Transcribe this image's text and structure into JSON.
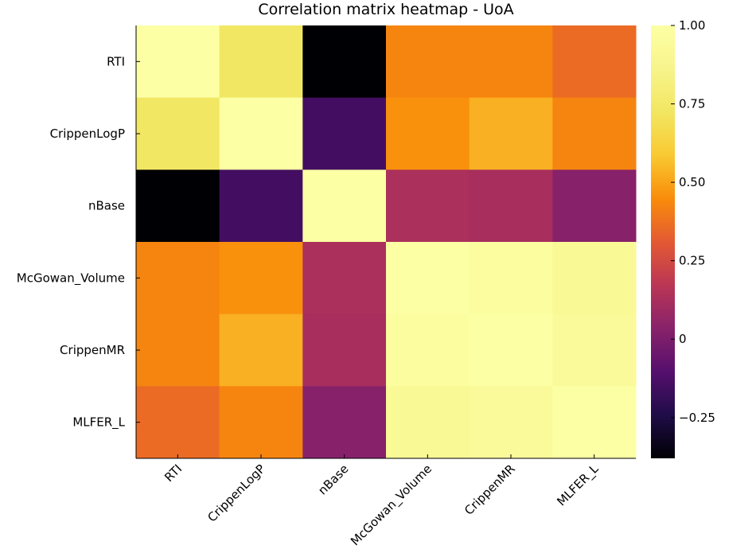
{
  "chart_data": {
    "type": "heatmap",
    "title": "Correlation matrix heatmap - UoA",
    "xlabel": "",
    "ylabel": "",
    "colormap": "inferno",
    "x_categories": [
      "RTI",
      "CrippenLogP",
      "nBase",
      "McGowan_Volume",
      "CrippenMR",
      "MLFER_L"
    ],
    "y_categories": [
      "RTI",
      "CrippenLogP",
      "nBase",
      "McGowan_Volume",
      "CrippenMR",
      "MLFER_L"
    ],
    "values": [
      [
        1.0,
        0.73,
        -0.38,
        0.43,
        0.43,
        0.36
      ],
      [
        0.73,
        1.0,
        -0.15,
        0.46,
        0.53,
        0.43
      ],
      [
        -0.38,
        -0.15,
        1.0,
        0.13,
        0.12,
        0.03
      ],
      [
        0.43,
        0.46,
        0.13,
        1.0,
        0.97,
        0.92
      ],
      [
        0.43,
        0.53,
        0.12,
        0.97,
        1.0,
        0.94
      ],
      [
        0.36,
        0.43,
        0.03,
        0.92,
        0.94,
        1.0
      ]
    ],
    "colorbar": {
      "range": [
        -0.38,
        1.0
      ],
      "ticks": [
        1.0,
        0.75,
        0.5,
        0.25,
        0,
        -0.25
      ],
      "tick_labels": [
        "1.00",
        "0.75",
        "0.50",
        "0.25",
        "0",
        "−0.25"
      ]
    }
  }
}
